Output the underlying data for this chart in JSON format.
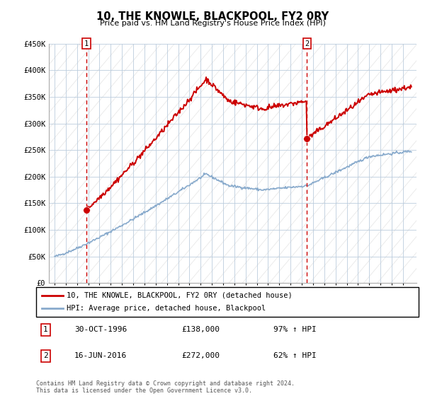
{
  "title": "10, THE KNOWLE, BLACKPOOL, FY2 0RY",
  "subtitle": "Price paid vs. HM Land Registry's House Price Index (HPI)",
  "ylim": [
    0,
    450000
  ],
  "yticks": [
    0,
    50000,
    100000,
    150000,
    200000,
    250000,
    300000,
    350000,
    400000,
    450000
  ],
  "ytick_labels": [
    "£0",
    "£50K",
    "£100K",
    "£150K",
    "£200K",
    "£250K",
    "£300K",
    "£350K",
    "£400K",
    "£450K"
  ],
  "line1_color": "#cc0000",
  "line2_color": "#88aacc",
  "marker_color": "#cc0000",
  "vline_color": "#cc0000",
  "point1_date": 1996.83,
  "point1_value": 138000,
  "point2_date": 2016.46,
  "point2_value": 272000,
  "legend_line1": "10, THE KNOWLE, BLACKPOOL, FY2 0RY (detached house)",
  "legend_line2": "HPI: Average price, detached house, Blackpool",
  "table_row1": [
    "1",
    "30-OCT-1996",
    "£138,000",
    "97% ↑ HPI"
  ],
  "table_row2": [
    "2",
    "16-JUN-2016",
    "£272,000",
    "62% ↑ HPI"
  ],
  "footnote": "Contains HM Land Registry data © Crown copyright and database right 2024.\nThis data is licensed under the Open Government Licence v3.0.",
  "hatch_color": "#e8e8e8",
  "grid_color": "#bbccdd"
}
